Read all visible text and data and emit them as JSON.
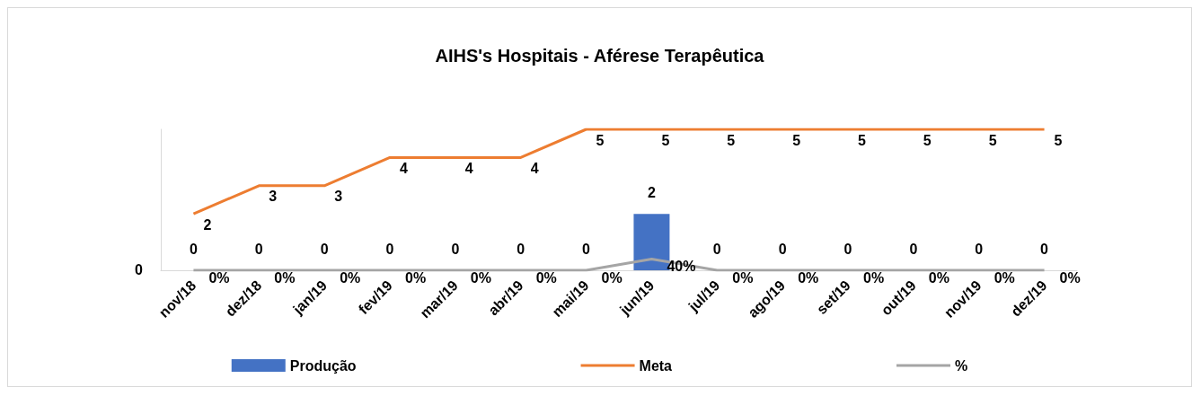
{
  "chart_data": {
    "type": "bar",
    "title": "AIHS's Hospitais - Aférese Terapêutica",
    "categories": [
      "nov/18",
      "dez/18",
      "jan/19",
      "fev/19",
      "mar/19",
      "abr/19",
      "mai/19",
      "jun/19",
      "jul/19",
      "ago/19",
      "set/19",
      "out/19",
      "nov/19",
      "dez/19"
    ],
    "series": [
      {
        "name": "Produção",
        "color": "#4472c4",
        "values": [
          0,
          0,
          0,
          0,
          0,
          0,
          0,
          2,
          0,
          0,
          0,
          0,
          0,
          0
        ]
      },
      {
        "name": "Meta",
        "type": "line",
        "color": "#ed7d31",
        "values": [
          2,
          3,
          3,
          4,
          4,
          4,
          5,
          5,
          5,
          5,
          5,
          5,
          5,
          5
        ]
      },
      {
        "name": "%",
        "type": "line",
        "color": "#a5a5a5",
        "values": [
          0,
          0,
          0,
          0,
          0,
          0,
          0,
          0.4,
          0,
          0,
          0,
          0,
          0,
          0
        ],
        "value_labels": [
          "0%",
          "0%",
          "0%",
          "0%",
          "0%",
          "0%",
          "0%",
          "40%",
          "0%",
          "0%",
          "0%",
          "0%",
          "0%",
          "0%"
        ]
      }
    ],
    "data_labels": true,
    "annotations": [
      "0"
    ],
    "legend": "bottom",
    "marker": "none"
  }
}
